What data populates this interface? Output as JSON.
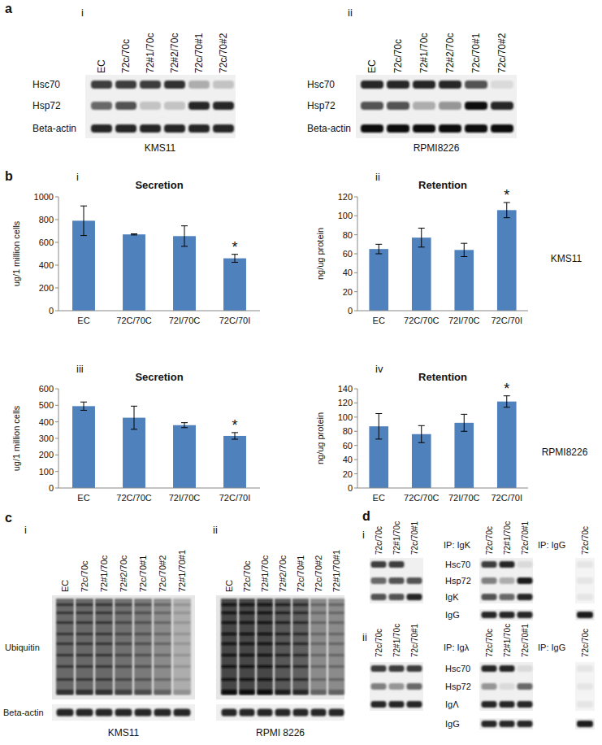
{
  "panels": {
    "a": {
      "label": "a",
      "blots": [
        {
          "label": "i",
          "cell_line": "KMS11",
          "lanes": [
            "EC",
            "72c/70c",
            "72#1/70c",
            "72#2/70c",
            "72c/70#1",
            "72c/70#2"
          ],
          "rows": [
            {
              "name": "Hsc70",
              "intensity": [
                0.8,
                0.8,
                0.8,
                0.85,
                0.3,
                0.2
              ]
            },
            {
              "name": "Hsp72",
              "intensity": [
                0.6,
                0.7,
                0.2,
                0.2,
                0.9,
                0.9
              ]
            },
            {
              "name": "Beta-actin",
              "intensity": [
                0.9,
                0.9,
                0.9,
                0.9,
                0.9,
                0.9
              ]
            }
          ]
        },
        {
          "label": "ii",
          "cell_line": "RPMI8226",
          "lanes": [
            "EC",
            "72c/70c",
            "72#1/70c",
            "72#2/70c",
            "72c/70#1",
            "72c/70#2"
          ],
          "rows": [
            {
              "name": "Hsc70",
              "intensity": [
                0.9,
                0.9,
                0.9,
                0.9,
                0.7,
                0.1
              ]
            },
            {
              "name": "Hsp72",
              "intensity": [
                0.7,
                0.7,
                0.3,
                0.4,
                1.0,
                0.9
              ]
            },
            {
              "name": "Beta-actin",
              "intensity": [
                1.0,
                1.0,
                1.0,
                1.0,
                1.0,
                1.0
              ]
            }
          ]
        }
      ]
    },
    "b": {
      "label": "b",
      "sublabels": [
        "i",
        "ii",
        "iii",
        "iv"
      ],
      "cell_lines": [
        "KMS11",
        "RPMI8226"
      ]
    },
    "c": {
      "label": "c",
      "blots": [
        {
          "label": "i",
          "cell_line": "KMS11",
          "lanes": [
            "EC",
            "72c/70c",
            "72#1/70c",
            "72#2/70c",
            "72c/70#1",
            "72c/70#2",
            "72#1/70#1"
          ],
          "rows": [
            {
              "name": "Ubiquitin",
              "intensity": [
                0.8,
                0.8,
                0.8,
                0.75,
                0.7,
                0.6,
                0.4
              ]
            },
            {
              "name": "Beta-actin",
              "intensity": [
                0.9,
                0.9,
                0.9,
                0.9,
                0.9,
                0.9,
                0.9
              ]
            }
          ]
        },
        {
          "label": "ii",
          "cell_line": "RPMI 8226",
          "lanes": [
            "EC",
            "72c/70c",
            "72#1/70c",
            "72#2/70c",
            "72c/70#1",
            "72c/70#2",
            "72#1/70#1"
          ],
          "rows": [
            {
              "name": "Ubiquitin",
              "intensity": [
                1.0,
                1.0,
                1.0,
                0.9,
                0.85,
                0.6,
                0.6
              ]
            },
            {
              "name": "Beta-actin",
              "intensity": [
                0.9,
                0.9,
                0.9,
                0.9,
                0.9,
                0.9,
                0.9
              ]
            }
          ]
        }
      ]
    },
    "d": {
      "label": "d",
      "parts": [
        {
          "label": "i",
          "lanes": [
            "72c/70c",
            "72#1/70c",
            "72c/70#1"
          ],
          "input_rows": [
            {
              "intensity": [
                0.8,
                0.8,
                0.0
              ]
            },
            {
              "intensity": [
                0.6,
                0.7,
                0.7
              ]
            },
            {
              "intensity": [
                0.7,
                0.7,
                0.9
              ]
            }
          ],
          "ip": {
            "title": "IP: IgK",
            "lanes": [
              "72c/70c",
              "72#1/70c",
              "72c/70#1"
            ],
            "rows": [
              {
                "name": "Hsc70",
                "intensity": [
                  0.8,
                  0.9,
                  0.1
                ]
              },
              {
                "name": "Hsp72",
                "intensity": [
                  0.5,
                  0.3,
                  0.95
                ]
              },
              {
                "name": "IgK",
                "intensity": [
                  0.7,
                  0.6,
                  0.9
                ]
              },
              {
                "name": "IgG",
                "intensity": [
                  0.9,
                  0.9,
                  0.9
                ]
              }
            ]
          },
          "control": {
            "title": "IP: IgG",
            "lanes": [
              "72c/70c"
            ],
            "rows": [
              {
                "intensity": [
                  0.05
                ]
              },
              {
                "intensity": [
                  0.05
                ]
              },
              {
                "intensity": [
                  0.05
                ]
              },
              {
                "intensity": [
                  0.95
                ]
              }
            ]
          }
        },
        {
          "label": "ii",
          "lanes": [
            "72c/70c",
            "72#1/70c",
            "72c/70#1"
          ],
          "input_rows": [
            {
              "intensity": [
                0.8,
                0.8,
                0.8
              ]
            },
            {
              "intensity": [
                0.5,
                0.4,
                0.6
              ]
            },
            {
              "intensity": [
                0.9,
                0.9,
                0.9
              ]
            }
          ],
          "ip": {
            "title": "IP: Igλ",
            "lanes": [
              "72c/70c",
              "72#1/70c",
              "72c/70#1"
            ],
            "rows": [
              {
                "name": "Hsc70",
                "intensity": [
                  0.9,
                  0.9,
                  0.1
                ]
              },
              {
                "name": "Hsp72",
                "intensity": [
                  0.4,
                  0.1,
                  0.6
                ]
              },
              {
                "name": "IgΛ",
                "intensity": [
                  0.9,
                  0.9,
                  0.9
                ]
              },
              {
                "name": "IgG",
                "intensity": [
                  0.9,
                  0.9,
                  0.9
                ]
              }
            ]
          },
          "control": {
            "title": "IP: IgG",
            "lanes": [
              "72c/70c"
            ],
            "rows": [
              {
                "intensity": [
                  0.05
                ]
              },
              {
                "intensity": [
                  0.05
                ]
              },
              {
                "intensity": [
                  0.05
                ]
              },
              {
                "intensity": [
                  0.95
                ]
              }
            ]
          }
        }
      ]
    }
  },
  "chart_data": [
    {
      "type": "bar",
      "title": "Secretion",
      "y_label": "ug/1 million cells",
      "categories": [
        "EC",
        "72C/70C",
        "72I/70C",
        "72C/70I"
      ],
      "values": [
        790,
        670,
        655,
        460
      ],
      "errors": [
        130,
        5,
        90,
        35
      ],
      "color": "#4f81bd",
      "ylim": [
        0,
        1000
      ],
      "yticks": [
        0,
        200,
        400,
        600,
        800,
        1000
      ],
      "annotations": [
        {
          "category": "72C/70I",
          "text": "*"
        }
      ]
    },
    {
      "type": "bar",
      "title": "Retention",
      "y_label": "ng/ug protein",
      "categories": [
        "EC",
        "72C/70C",
        "72I/70C",
        "72C/70I"
      ],
      "values": [
        65,
        77,
        64,
        106
      ],
      "errors": [
        5,
        10,
        7,
        8
      ],
      "color": "#4f81bd",
      "ylim": [
        0,
        120
      ],
      "yticks": [
        0,
        20,
        40,
        60,
        80,
        100,
        120
      ],
      "annotations": [
        {
          "category": "72C/70I",
          "text": "*"
        }
      ]
    },
    {
      "type": "bar",
      "title": "Secretion",
      "y_label": "ug/1 million cells",
      "categories": [
        "EC",
        "72C/70C",
        "72I/70C",
        "72C/70I"
      ],
      "values": [
        495,
        425,
        380,
        315
      ],
      "errors": [
        25,
        70,
        15,
        20
      ],
      "color": "#4f81bd",
      "ylim": [
        0,
        600
      ],
      "yticks": [
        0,
        100,
        200,
        300,
        400,
        500,
        600
      ],
      "annotations": [
        {
          "category": "72C/70I",
          "text": "*"
        }
      ]
    },
    {
      "type": "bar",
      "title": "Retention",
      "y_label": "ng/ug protein",
      "categories": [
        "EC",
        "72C/70C",
        "72I/70C",
        "72C/70I"
      ],
      "values": [
        87,
        76,
        92,
        122
      ],
      "errors": [
        18,
        12,
        12,
        8
      ],
      "color": "#4f81bd",
      "ylim": [
        0,
        140
      ],
      "yticks": [
        0,
        20,
        40,
        60,
        80,
        100,
        120,
        140
      ],
      "annotations": [
        {
          "category": "72C/70I",
          "text": "*"
        }
      ]
    }
  ]
}
